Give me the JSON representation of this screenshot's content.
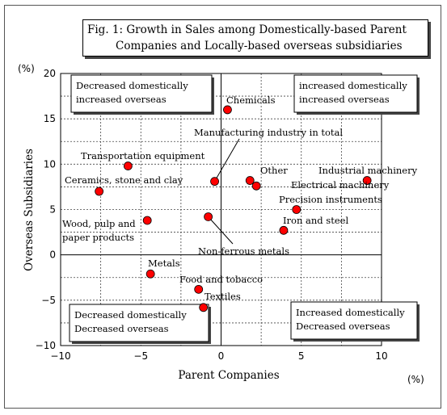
{
  "title": {
    "line1": "Fig. 1: Growth in Sales among Domestically-based Parent",
    "line2": "Companies and Locally-based overseas subsidiaries"
  },
  "chart_data": {
    "type": "scatter",
    "xlabel": "Parent Companies",
    "ylabel": "Overseas Subsidiaries",
    "x_unit": "(%)",
    "y_unit": "(%)",
    "xlim": [
      -10,
      10
    ],
    "ylim": [
      -10,
      20
    ],
    "x_ticks": [
      -10,
      -5,
      0,
      5,
      10
    ],
    "y_ticks": [
      -10,
      -5,
      0,
      5,
      10,
      15,
      20
    ],
    "x_tick_labels": [
      "−10",
      "−5",
      "0",
      "5",
      "10"
    ],
    "y_tick_labels": [
      "−10",
      "−5",
      "0",
      "5",
      "10",
      "15",
      "20"
    ],
    "grid": true,
    "marker_color": "#ff0000",
    "points": [
      {
        "label": "Chemicals",
        "x": 0.4,
        "y": 16.0
      },
      {
        "label": "Transportation equipment",
        "x": -5.8,
        "y": 9.8
      },
      {
        "label": "Ceramics, stone and clay",
        "x": -7.6,
        "y": 7.0
      },
      {
        "label": "Manufacturing industry in total",
        "x": -0.4,
        "y": 8.1
      },
      {
        "label": "Other",
        "x": 1.8,
        "y": 8.2
      },
      {
        "label": "Electrical machinery",
        "x": 2.2,
        "y": 7.6
      },
      {
        "label": "Industrial machinery",
        "x": 9.1,
        "y": 8.2
      },
      {
        "label": "Precision instruments",
        "x": 4.7,
        "y": 5.0
      },
      {
        "label": "Wood, pulp and paper products",
        "x": -4.6,
        "y": 3.8
      },
      {
        "label": "Non-ferrous metals",
        "x": -0.8,
        "y": 4.2
      },
      {
        "label": "Iron and steel",
        "x": 3.9,
        "y": 2.7
      },
      {
        "label": "Metals",
        "x": -4.4,
        "y": -2.1
      },
      {
        "label": "Food and tobacco",
        "x": -1.4,
        "y": -3.8
      },
      {
        "label": "Textiles",
        "x": -1.1,
        "y": -5.8
      }
    ],
    "quadrant_notes": {
      "top_left": [
        "Decreased domestically",
        "increased overseas"
      ],
      "top_right": [
        "increased domestically",
        "increased overseas"
      ],
      "bottom_left": [
        "Decreased domestically",
        "Decreased overseas"
      ],
      "bottom_right": [
        "Increased domestically",
        "Decreased overseas"
      ]
    }
  }
}
